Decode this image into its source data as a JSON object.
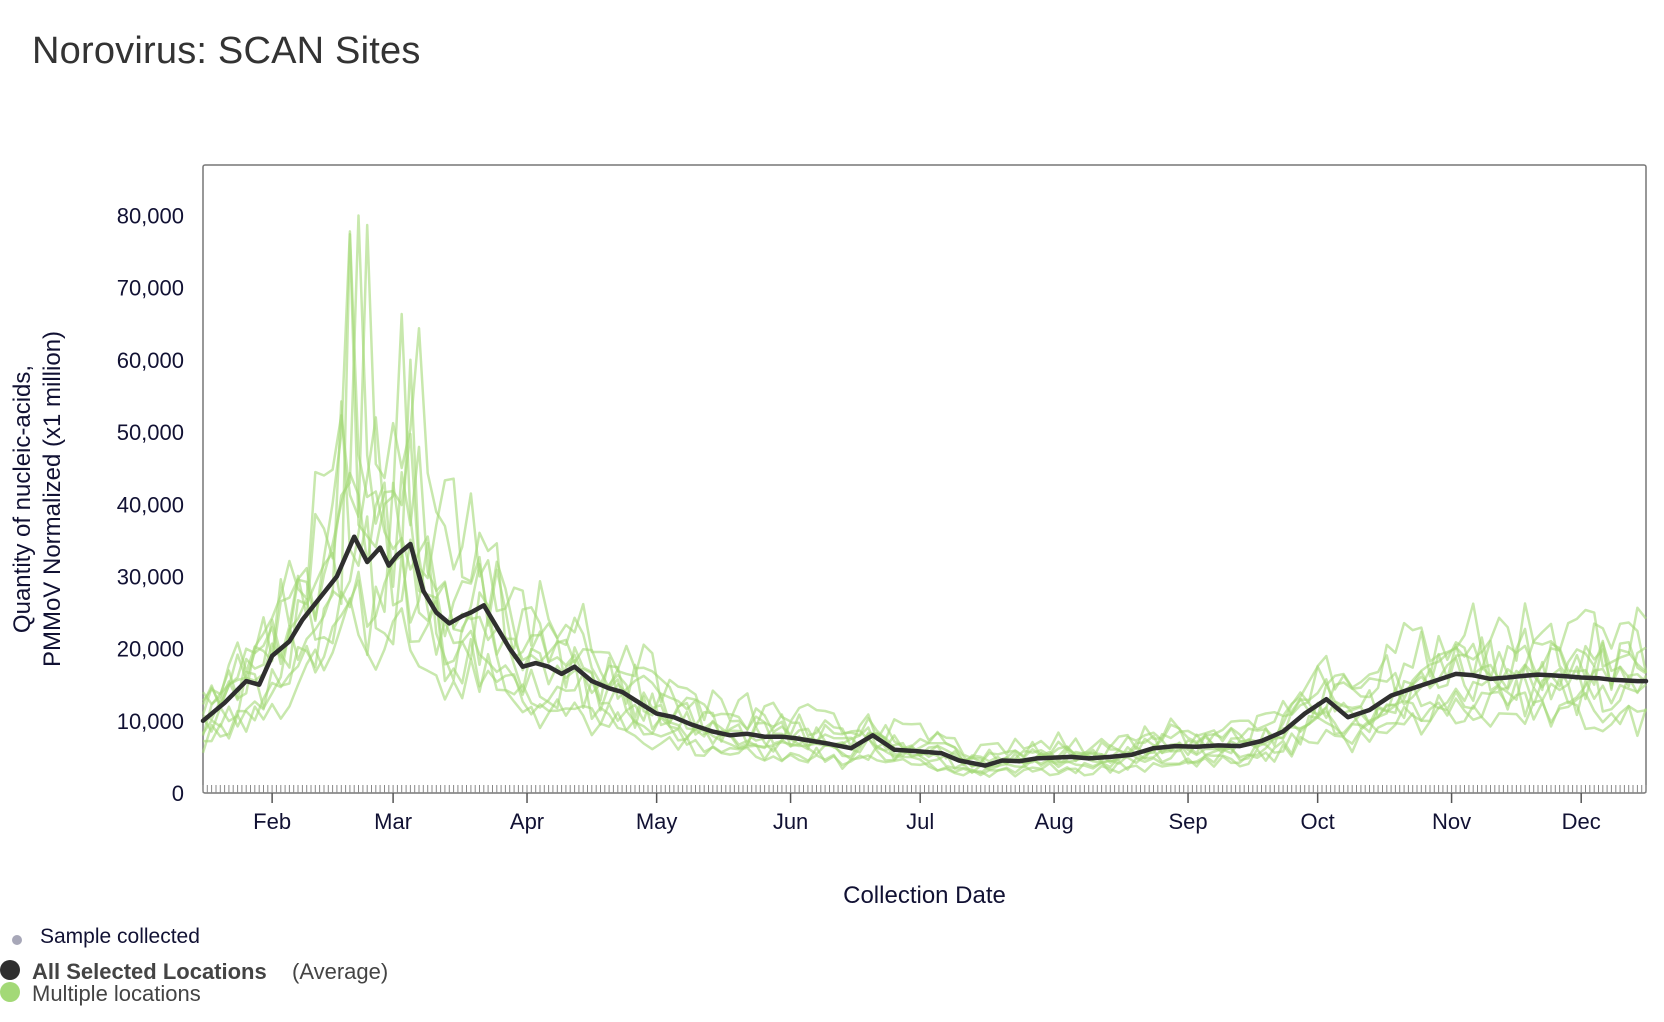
{
  "page": {
    "title": "Norovirus: SCAN Sites"
  },
  "colors": {
    "average_line": "#2f2f2f",
    "location_lines": "#a3d977",
    "sample_dot": "#a7a7b8",
    "axis": "#555555",
    "text": "#111133"
  },
  "chart_data": {
    "type": "line",
    "title": "Norovirus: SCAN Sites",
    "xlabel": "Collection Date",
    "ylabel_line1": "Quantity of nucleic-acids,",
    "ylabel_line2": "PMMoV Normalized (x1 million)",
    "ylim": [
      0,
      87000
    ],
    "xlim_day": [
      15,
      349
    ],
    "y_ticks": [
      0,
      10000,
      20000,
      30000,
      40000,
      50000,
      60000,
      70000,
      80000
    ],
    "y_tick_labels": [
      "0",
      "10,000",
      "20,000",
      "30,000",
      "40,000",
      "50,000",
      "60,000",
      "70,000",
      "80,000"
    ],
    "x_ticks": [
      {
        "label": "Feb",
        "day": 31
      },
      {
        "label": "Mar",
        "day": 59
      },
      {
        "label": "Apr",
        "day": 90
      },
      {
        "label": "May",
        "day": 120
      },
      {
        "label": "Jun",
        "day": 151
      },
      {
        "label": "Jul",
        "day": 181
      },
      {
        "label": "Aug",
        "day": 212
      },
      {
        "label": "Sep",
        "day": 243
      },
      {
        "label": "Oct",
        "day": 273
      },
      {
        "label": "Nov",
        "day": 304
      },
      {
        "label": "Dec",
        "day": 334
      }
    ],
    "series": [
      {
        "name": "All Selected Locations (Average)",
        "x_day": [
          15,
          20,
          25,
          28,
          31,
          35,
          38,
          42,
          46,
          50,
          53,
          56,
          58,
          60,
          63,
          66,
          69,
          72,
          75,
          77,
          80,
          83,
          86,
          89,
          92,
          95,
          98,
          101,
          105,
          109,
          112,
          116,
          120,
          124,
          128,
          133,
          137,
          141,
          145,
          149,
          152,
          156,
          160,
          165,
          170,
          175,
          180,
          186,
          190,
          196,
          200,
          204,
          208,
          212,
          216,
          220,
          225,
          230,
          235,
          240,
          245,
          250,
          255,
          260,
          265,
          270,
          275,
          280,
          285,
          290,
          295,
          300,
          305,
          309,
          313,
          317,
          320,
          324,
          327,
          330,
          334,
          338,
          341,
          344,
          347,
          349
        ],
        "values": [
          10000,
          12500,
          15500,
          15000,
          19000,
          21000,
          24000,
          27000,
          30000,
          35500,
          32000,
          34000,
          31500,
          33000,
          34500,
          28000,
          25000,
          23500,
          24500,
          25000,
          26000,
          23000,
          20000,
          17500,
          18000,
          17500,
          16500,
          17500,
          15500,
          14500,
          14000,
          12500,
          11000,
          10500,
          9500,
          8500,
          8000,
          8200,
          7800,
          7800,
          7600,
          7200,
          6800,
          6200,
          8000,
          6000,
          5800,
          5500,
          4500,
          3800,
          4500,
          4400,
          4800,
          4900,
          5000,
          4800,
          5000,
          5300,
          6200,
          6500,
          6400,
          6600,
          6500,
          7200,
          8500,
          11000,
          13000,
          10500,
          11500,
          13500,
          14500,
          15500,
          16500,
          16300,
          15800,
          16000,
          16200,
          16400,
          16300,
          16200,
          16000,
          15900,
          15700,
          15600,
          15500,
          15500
        ]
      },
      {
        "name": "Multiple locations",
        "color": "#a3d977"
      }
    ]
  },
  "legend": {
    "sample_collected": "Sample collected",
    "average_label_bold": "All Selected Locations",
    "average_label_suffix": "(Average)",
    "locations_label": "Multiple locations"
  }
}
